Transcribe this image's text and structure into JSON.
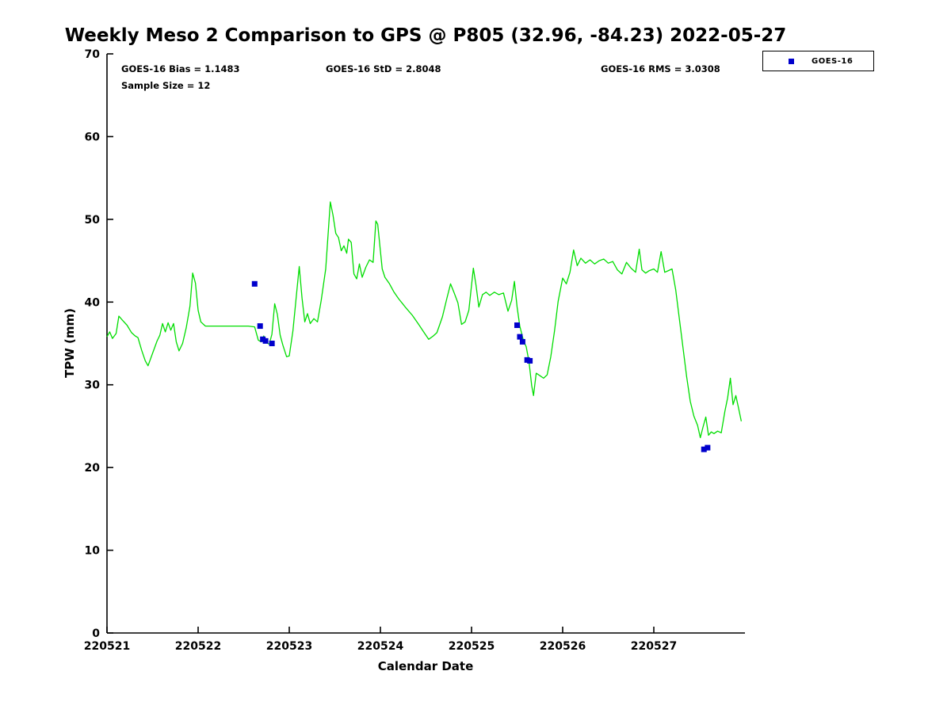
{
  "annotations": {
    "bias": "GOES-16 Bias = 1.1483",
    "std": "GOES-16 StD = 2.8048",
    "rms": "GOES-16 RMS = 3.0308",
    "sample_size": "Sample Size = 12"
  },
  "legend": {
    "items": [
      {
        "label": "GOES-16",
        "marker": "square",
        "marker_color": "#0000cc"
      }
    ]
  },
  "chart_data": {
    "type": "line",
    "title": "Weekly Meso 2 Comparison to GPS @ P805 (32.96, -84.23) 2022-05-27",
    "xlabel": "Calendar Date",
    "ylabel": "TPW (mm)",
    "xlim": [
      220521,
      220528
    ],
    "ylim": [
      0,
      70
    ],
    "x_ticks": [
      220521,
      220522,
      220523,
      220524,
      220525,
      220526,
      220527
    ],
    "y_ticks": [
      0,
      10,
      20,
      30,
      40,
      50,
      60,
      70
    ],
    "grid": false,
    "legend_position": "top-right-outside",
    "series": [
      {
        "name": "GPS",
        "type": "line",
        "color": "#00dd00",
        "x": [
          220521,
          220521.03,
          220521.06,
          220521.1,
          220521.13,
          220521.17,
          220521.22,
          220521.27,
          220521.31,
          220521.34,
          220521.38,
          220521.42,
          220521.45,
          220521.5,
          220521.55,
          220521.58,
          220521.61,
          220521.64,
          220521.67,
          220521.7,
          220521.73,
          220521.76,
          220521.79,
          220521.83,
          220521.87,
          220521.91,
          220521.94,
          220521.97,
          220522,
          220522.03,
          220522.08,
          220522.15,
          220522.25,
          220522.35,
          220522.45,
          220522.55,
          220522.62,
          220522.66,
          220522.69,
          220522.72,
          220522.75,
          220522.78,
          220522.81,
          220522.84,
          220522.87,
          220522.9,
          220522.93,
          220522.97,
          220523,
          220523.04,
          220523.08,
          220523.11,
          220523.14,
          220523.17,
          220523.2,
          220523.23,
          220523.27,
          220523.31,
          220523.35,
          220523.4,
          220523.45,
          220523.48,
          220523.51,
          220523.54,
          220523.57,
          220523.6,
          220523.63,
          220523.65,
          220523.68,
          220523.71,
          220523.74,
          220523.77,
          220523.8,
          220523.84,
          220523.88,
          220523.92,
          220523.95,
          220523.97,
          220524.02,
          220524.05,
          220524.1,
          220524.15,
          220524.2,
          220524.28,
          220524.35,
          220524.42,
          220524.48,
          220524.53,
          220524.58,
          220524.62,
          220524.68,
          220524.73,
          220524.77,
          220524.81,
          220524.85,
          220524.89,
          220524.93,
          220524.97,
          220525.02,
          220525.05,
          220525.08,
          220525.12,
          220525.16,
          220525.2,
          220525.25,
          220525.3,
          220525.35,
          220525.4,
          220525.44,
          220525.47,
          220525.5,
          220525.53,
          220525.57,
          220525.6,
          220525.63,
          220525.66,
          220525.68,
          220525.71,
          220525.75,
          220525.79,
          220525.83,
          220525.87,
          220525.91,
          220525.95,
          220526,
          220526.04,
          220526.08,
          220526.12,
          220526.16,
          220526.2,
          220526.25,
          220526.3,
          220526.35,
          220526.4,
          220526.45,
          220526.5,
          220526.55,
          220526.6,
          220526.65,
          220526.7,
          220526.75,
          220526.8,
          220526.84,
          220526.87,
          220526.91,
          220526.95,
          220527,
          220527.04,
          220527.08,
          220527.12,
          220527.16,
          220527.2,
          220527.24,
          220527.28,
          220527.32,
          220527.36,
          220527.4,
          220527.44,
          220527.48,
          220527.51,
          220527.54,
          220527.57,
          220527.6,
          220527.63,
          220527.66,
          220527.7,
          220527.74,
          220527.78,
          220527.81,
          220527.84,
          220527.87,
          220527.9,
          220527.93,
          220527.96
        ],
        "y": [
          35.8,
          36.4,
          35.6,
          36.2,
          38.3,
          37.8,
          37.2,
          36.3,
          35.9,
          35.7,
          34.2,
          32.9,
          32.3,
          33.8,
          35.3,
          36.0,
          37.4,
          36.4,
          37.5,
          36.6,
          37.4,
          35.2,
          34.1,
          35.0,
          36.9,
          39.5,
          43.5,
          42.3,
          39.0,
          37.6,
          37.1,
          37.1,
          37.1,
          37.1,
          37.1,
          37.1,
          37.0,
          35.4,
          35.2,
          35.9,
          35.1,
          34.9,
          36.1,
          39.8,
          38.5,
          36.0,
          34.8,
          33.4,
          33.5,
          36.5,
          41.0,
          44.3,
          40.5,
          37.6,
          38.6,
          37.4,
          38.0,
          37.6,
          40.2,
          44.0,
          52.1,
          50.5,
          48.3,
          47.8,
          46.2,
          46.8,
          45.9,
          47.6,
          47.2,
          43.4,
          42.8,
          44.6,
          43.0,
          44.2,
          45.1,
          44.8,
          49.8,
          49.4,
          44.0,
          43.0,
          42.2,
          41.2,
          40.4,
          39.3,
          38.4,
          37.3,
          36.3,
          35.5,
          35.9,
          36.3,
          38.2,
          40.5,
          42.2,
          41.1,
          39.9,
          37.3,
          37.6,
          39.0,
          44.1,
          42.0,
          39.4,
          40.9,
          41.2,
          40.8,
          41.2,
          40.9,
          41.1,
          38.9,
          40.2,
          42.5,
          39.4,
          37.1,
          35.3,
          34.6,
          32.8,
          29.9,
          28.7,
          31.4,
          31.1,
          30.8,
          31.2,
          33.4,
          36.5,
          40.1,
          42.9,
          42.2,
          43.6,
          46.3,
          44.4,
          45.3,
          44.7,
          45.1,
          44.6,
          45.0,
          45.2,
          44.7,
          44.9,
          43.9,
          43.4,
          44.8,
          44.1,
          43.6,
          46.4,
          43.9,
          43.5,
          43.8,
          44.0,
          43.6,
          46.1,
          43.6,
          43.8,
          44.0,
          41.5,
          38.0,
          34.5,
          31.0,
          28.0,
          26.2,
          25.1,
          23.6,
          24.9,
          26.1,
          23.9,
          24.3,
          24.1,
          24.4,
          24.2,
          26.8,
          28.4,
          30.8,
          27.6,
          28.7,
          27.2,
          25.6
        ]
      },
      {
        "name": "GOES-16",
        "type": "scatter",
        "color": "#0000cc",
        "marker": "square",
        "x": [
          220522.62,
          220522.68,
          220522.71,
          220522.74,
          220522.81,
          220525.5,
          220525.53,
          220525.56,
          220525.61,
          220525.64,
          220527.55,
          220527.59
        ],
        "y": [
          42.2,
          37.1,
          35.5,
          35.3,
          35.0,
          37.2,
          35.8,
          35.2,
          33.0,
          32.9,
          22.2,
          22.4
        ]
      }
    ]
  }
}
